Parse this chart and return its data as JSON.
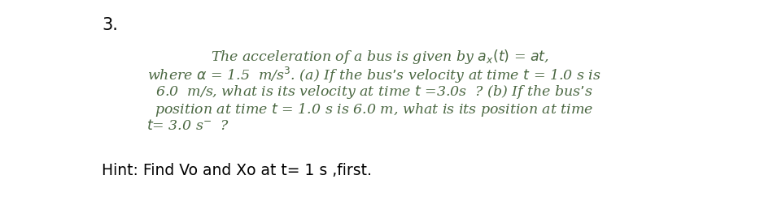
{
  "background_color": "#ffffff",
  "number_label": "3.",
  "text_color": "#4a6741",
  "hint_color": "#000000",
  "number_color": "#000000",
  "body_fontsize": 12.5,
  "hint_fontsize": 13.5,
  "number_fontsize": 15,
  "lines": [
    "The acceleration of a bus is given by $a_x(t)$ = $at$,",
    "where $\\alpha$ = 1.5  m/s$^3$. (a) If the bus’s velocity at time $t$ = 1.0 s is",
    "6.0  m/s, what is its velocity at time $t$ =3.0s  ? (b) If the bus’s",
    "position at time $t$ = 1.0 s is 6.0 m, what is its position at time",
    "$t$= 3.0 s$^{-}$  ?"
  ],
  "hint": "Hint: Find Vo and Xo at t= 1 s ,first."
}
